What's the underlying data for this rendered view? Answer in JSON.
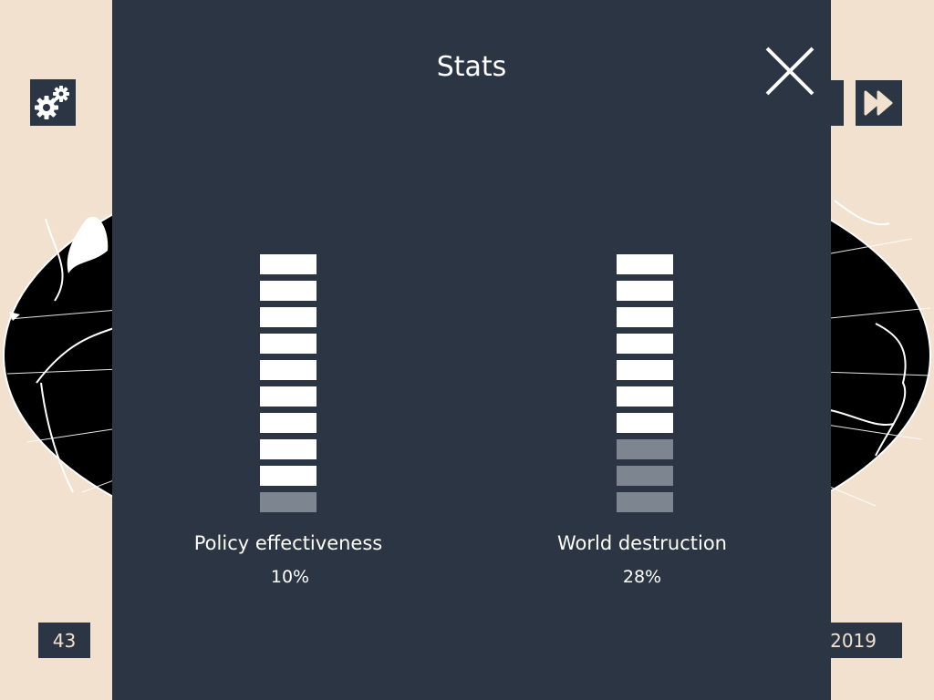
{
  "colors": {
    "background": "#f2e1ce",
    "panel": "#2b3544",
    "meter_filled": "#ffffff",
    "meter_empty": "#7c8590",
    "map_land": "#000000"
  },
  "hud": {
    "settings_icon": "gears-icon",
    "fast_forward_icon": "fast-forward-icon",
    "turn": "43",
    "year": "2019"
  },
  "modal": {
    "title": "Stats",
    "close_icon": "close-icon",
    "stats": [
      {
        "label": "Policy effectiveness",
        "value": "10%",
        "segments_total": 10,
        "segments_filled": 9
      },
      {
        "label": "World destruction",
        "value": "28%",
        "segments_total": 10,
        "segments_filled": 7
      }
    ]
  }
}
